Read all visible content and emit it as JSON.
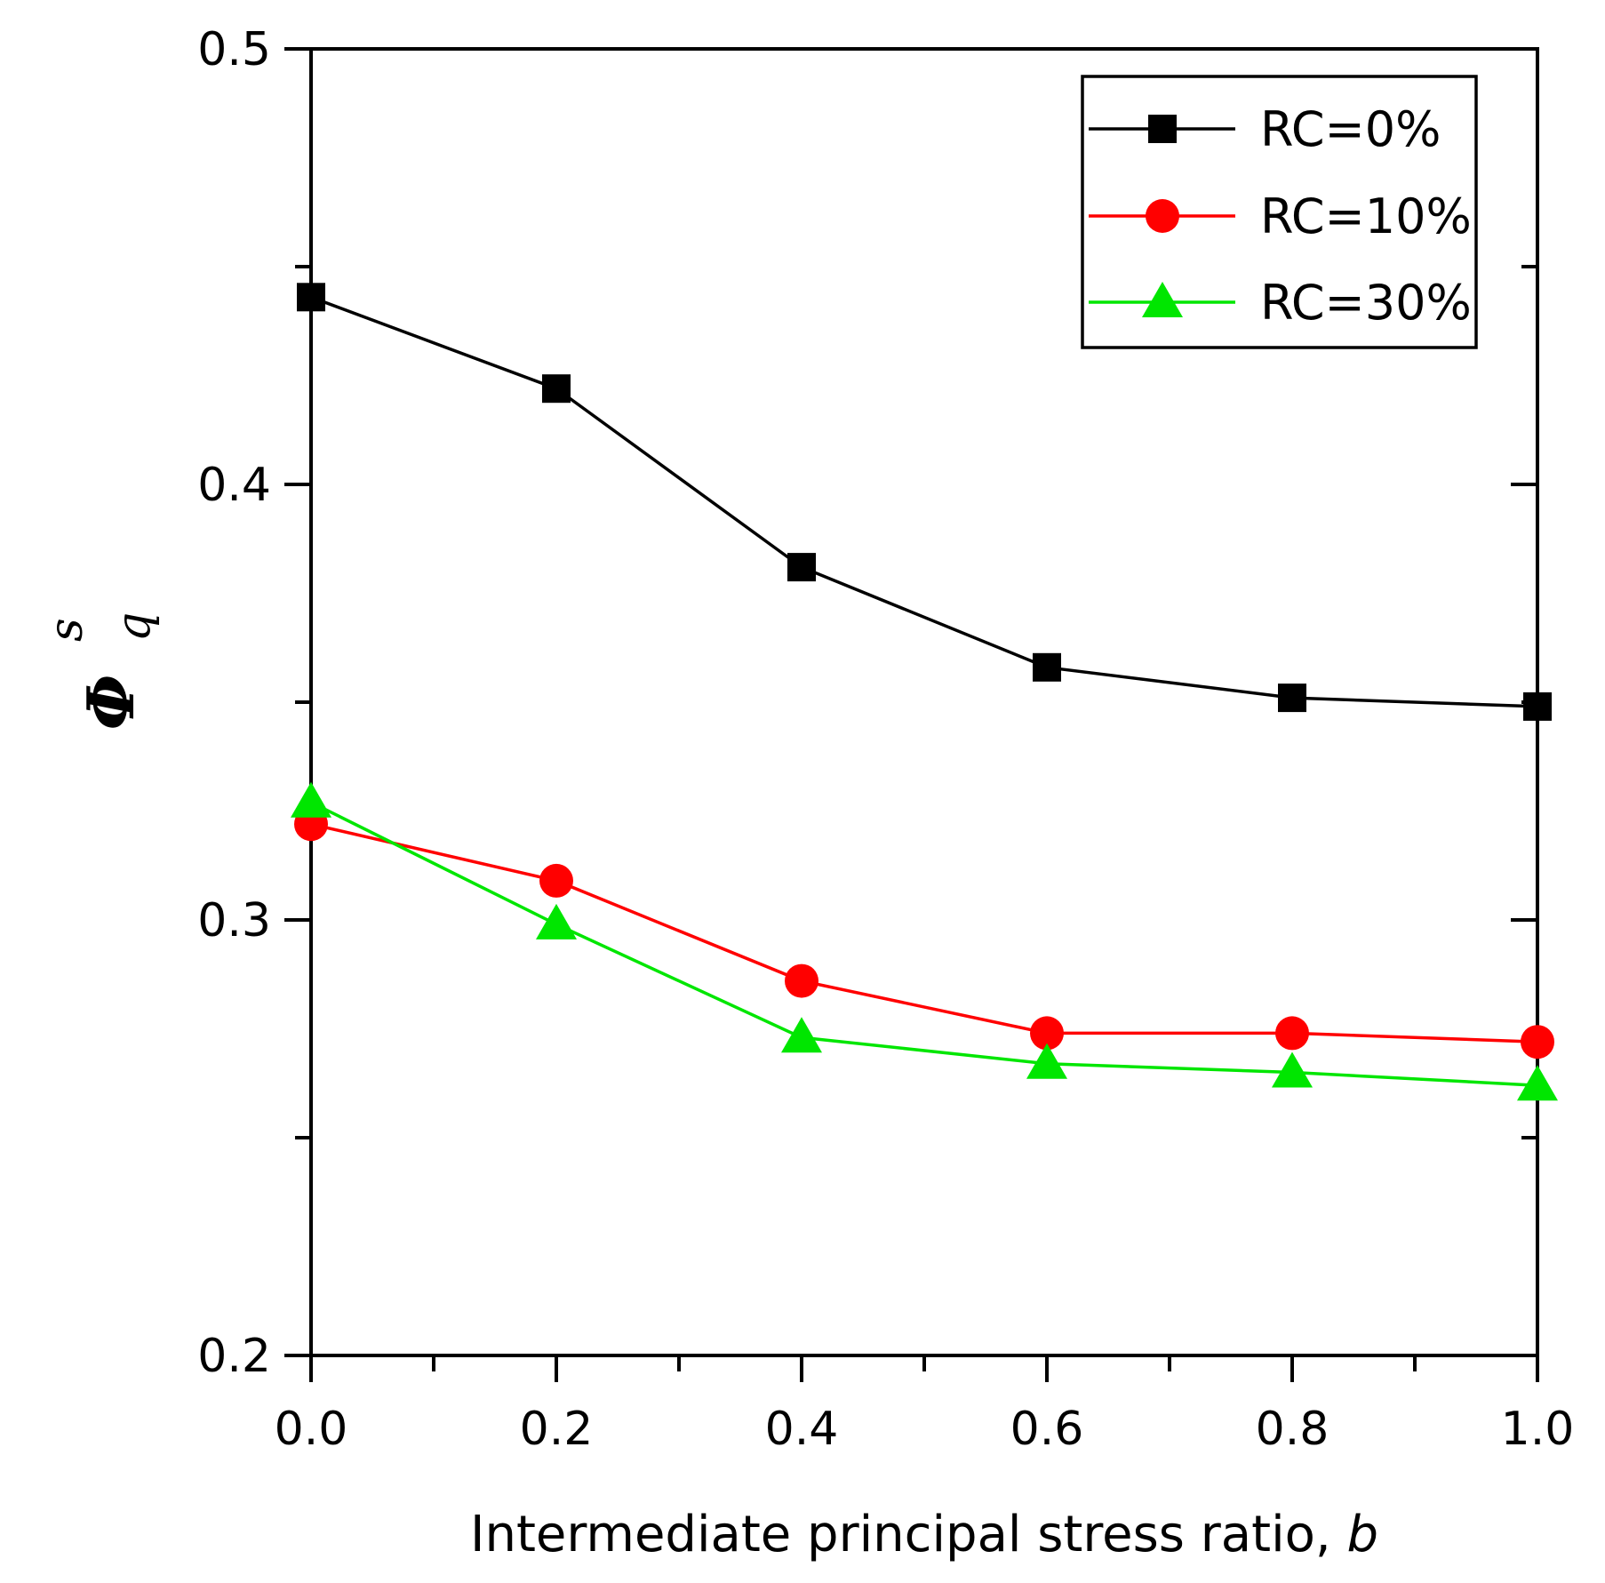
{
  "chart_data": {
    "type": "line",
    "xlabel": "Intermediate principal stress ratio, ",
    "xlabel_var": "b",
    "ylabel": "Φ",
    "ylabel_sup": "s",
    "ylabel_sub": "q",
    "xlim": [
      0,
      1.0
    ],
    "ylim": [
      0.2,
      0.5
    ],
    "x_ticks": [
      0.0,
      0.2,
      0.4,
      0.6,
      0.8,
      1.0
    ],
    "x_tick_labels": [
      "0.0",
      "0.2",
      "0.4",
      "0.6",
      "0.8",
      "1.0"
    ],
    "y_ticks": [
      0.2,
      0.3,
      0.4,
      0.5
    ],
    "y_tick_labels": [
      "0.2",
      "0.3",
      "0.4",
      "0.5"
    ],
    "grid": false,
    "legend_position": "top-right",
    "x": [
      0.0,
      0.2,
      0.4,
      0.6,
      0.8,
      1.0
    ],
    "series": [
      {
        "name": "RC=0%",
        "color": "#000000",
        "marker": "square",
        "values": [
          0.443,
          0.422,
          0.381,
          0.358,
          0.351,
          0.349
        ]
      },
      {
        "name": "RC=10%",
        "color": "#ff0000",
        "marker": "circle",
        "values": [
          0.322,
          0.309,
          0.286,
          0.274,
          0.274,
          0.272
        ]
      },
      {
        "name": "RC=30%",
        "color": "#00e600",
        "marker": "triangle",
        "values": [
          0.327,
          0.299,
          0.273,
          0.267,
          0.265,
          0.262
        ]
      }
    ]
  }
}
